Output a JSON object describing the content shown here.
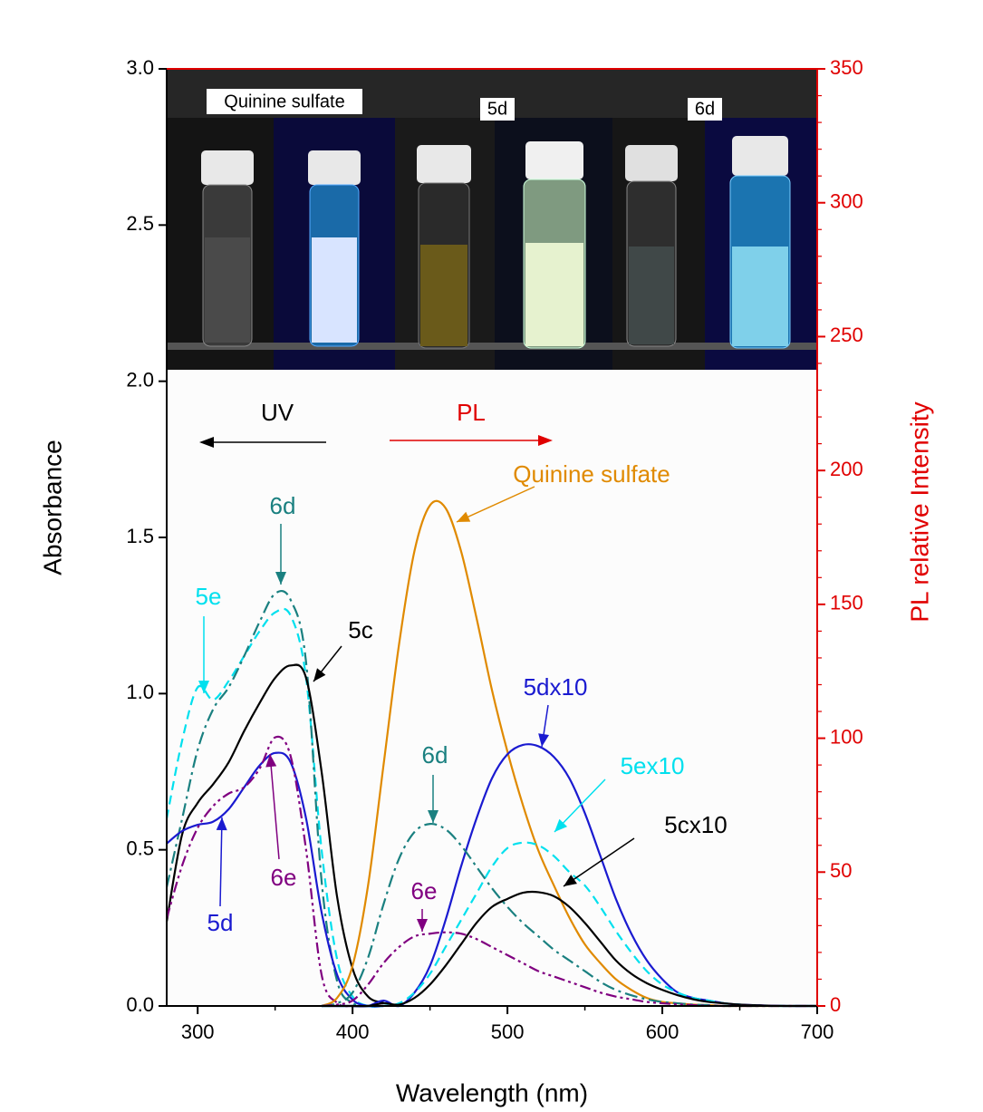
{
  "chart_data": {
    "type": "line",
    "x_label": "Wavelength (nm)",
    "y_label": "Absorbance",
    "y2_label": "PL relative Intensity",
    "photo_labels": [
      "Quinine sulfate",
      "5d",
      "6d"
    ],
    "uv_label": "UV",
    "pl_label": "PL",
    "xlim": [
      280,
      700
    ],
    "xticks": [
      300,
      400,
      500,
      600,
      700
    ],
    "ylim": [
      0,
      3
    ],
    "yticks": [
      {
        "value": 0,
        "label": "0.0"
      },
      0.5,
      {
        "value": 1,
        "label": "1.0"
      },
      1.5,
      {
        "value": 2,
        "label": "2.0"
      },
      2.5,
      {
        "value": 3,
        "label": "3.0"
      }
    ],
    "y2lim": [
      0,
      350
    ],
    "y2ticks": [
      0,
      50,
      100,
      150,
      200,
      250,
      300,
      350
    ],
    "y2_color": "#e00000",
    "series": [
      {
        "name": "5e",
        "color": "#00e0ee",
        "dash": "dashed",
        "x": [
          280,
          290,
          300,
          310,
          320,
          330,
          340,
          350,
          360,
          370,
          380,
          390,
          400,
          410,
          420
        ],
        "values": [
          0.6,
          0.85,
          1.02,
          0.98,
          1.04,
          1.12,
          1.2,
          1.26,
          1.25,
          1.05,
          0.5,
          0.15,
          0.03,
          0,
          0
        ]
      },
      {
        "name": "6d",
        "color": "#1a8080",
        "dash": "dashdot",
        "x": [
          280,
          290,
          300,
          310,
          320,
          330,
          340,
          350,
          360,
          370,
          380,
          390,
          400,
          410,
          420
        ],
        "values": [
          0.38,
          0.6,
          0.82,
          0.95,
          1.02,
          1.12,
          1.23,
          1.32,
          1.3,
          1.1,
          0.4,
          0.08,
          0.01,
          0,
          0
        ]
      },
      {
        "name": "5c",
        "color": "#000000",
        "dash": "solid",
        "x": [
          280,
          290,
          300,
          310,
          320,
          330,
          340,
          350,
          360,
          370,
          380,
          390,
          400,
          410,
          420
        ],
        "values": [
          0.27,
          0.55,
          0.65,
          0.71,
          0.78,
          0.88,
          0.97,
          1.05,
          1.09,
          1.05,
          0.75,
          0.35,
          0.12,
          0.03,
          0.01
        ]
      },
      {
        "name": "5d",
        "color": "#1a1ad0",
        "dash": "solid",
        "x": [
          280,
          290,
          300,
          310,
          320,
          330,
          340,
          350,
          360,
          370,
          380,
          390,
          400,
          410,
          420
        ],
        "values": [
          0.52,
          0.56,
          0.58,
          0.59,
          0.63,
          0.7,
          0.77,
          0.81,
          0.78,
          0.6,
          0.3,
          0.1,
          0.02,
          0,
          0
        ]
      },
      {
        "name": "6e",
        "color": "#800080",
        "dash": "dashdotdot",
        "x": [
          280,
          290,
          300,
          310,
          320,
          330,
          340,
          350,
          360,
          370,
          380,
          390,
          400,
          410,
          420
        ],
        "values": [
          0.28,
          0.45,
          0.57,
          0.64,
          0.68,
          0.7,
          0.76,
          0.86,
          0.8,
          0.5,
          0.1,
          0.01,
          0,
          0,
          0
        ]
      },
      {
        "name": "Quinine sulfate",
        "color": "#e08a00",
        "dash": "solid",
        "axis": "y2",
        "x": [
          380,
          390,
          400,
          410,
          420,
          430,
          440,
          450,
          460,
          470,
          480,
          490,
          500,
          510,
          520,
          530,
          540,
          550,
          560,
          570,
          580,
          590,
          600,
          610,
          620,
          630,
          640,
          650,
          660,
          670,
          680,
          690,
          700
        ],
        "values": [
          0,
          3,
          15,
          45,
          90,
          135,
          170,
          187,
          186,
          170,
          145,
          118,
          95,
          75,
          58,
          45,
          33,
          23,
          16,
          10,
          6,
          3,
          1.5,
          1,
          0.5,
          0.3,
          0,
          0,
          0,
          0,
          0,
          0,
          0
        ]
      },
      {
        "name": "5dx10",
        "color": "#1a1ad0",
        "dash": "solid",
        "axis": "y2",
        "x": [
          380,
          390,
          400,
          410,
          420,
          430,
          440,
          450,
          460,
          470,
          480,
          490,
          500,
          510,
          520,
          530,
          540,
          550,
          560,
          570,
          580,
          590,
          600,
          610,
          620,
          630,
          640,
          650,
          660,
          670,
          680,
          690,
          700
        ],
        "values": [
          0,
          0,
          0,
          0,
          2,
          0,
          5,
          15,
          32,
          52,
          70,
          85,
          94,
          97.5,
          97,
          93,
          85,
          72,
          56,
          40,
          27,
          17,
          10,
          5,
          3,
          2,
          1,
          0.5,
          0.3,
          0.1,
          0,
          0,
          0
        ]
      },
      {
        "name": "5ex10",
        "color": "#00e0ee",
        "dash": "dashed",
        "axis": "y2",
        "x": [
          380,
          390,
          400,
          410,
          420,
          430,
          440,
          450,
          460,
          470,
          480,
          490,
          500,
          510,
          520,
          530,
          540,
          550,
          560,
          570,
          580,
          590,
          600,
          610,
          620,
          630,
          640,
          650,
          660,
          670,
          680,
          690,
          700
        ],
        "values": [
          0,
          0,
          0,
          0,
          0,
          1,
          5,
          12,
          22,
          32,
          42,
          52,
          59,
          61,
          60,
          56,
          50,
          45,
          37,
          28,
          20,
          13,
          8,
          5,
          3,
          2,
          1,
          0.5,
          0.2,
          0,
          0,
          0,
          0
        ]
      },
      {
        "name": "5cx10",
        "color": "#000000",
        "dash": "solid",
        "axis": "y2",
        "x": [
          380,
          390,
          400,
          410,
          420,
          430,
          440,
          450,
          460,
          470,
          480,
          490,
          500,
          510,
          520,
          530,
          540,
          550,
          560,
          570,
          580,
          590,
          600,
          610,
          620,
          630,
          640,
          650,
          660,
          670,
          680,
          690,
          700
        ],
        "values": [
          0,
          0,
          0,
          0,
          1,
          0.5,
          3,
          8,
          15,
          23,
          31,
          37,
          40,
          42.3,
          42.5,
          41,
          37,
          31,
          24,
          17,
          12,
          8.5,
          6,
          4,
          2.5,
          1.5,
          1,
          0.5,
          0.3,
          0.1,
          0,
          0,
          0
        ]
      },
      {
        "name": "6d",
        "color": "#1a8080",
        "dash": "dashdot",
        "axis": "y2",
        "x": [
          380,
          390,
          400,
          410,
          420,
          430,
          440,
          450,
          460,
          470,
          480,
          490,
          500,
          510,
          520,
          530,
          540,
          550,
          560,
          570,
          580,
          590,
          600,
          610,
          620,
          630,
          640,
          650,
          660,
          670,
          680,
          690,
          700
        ],
        "values": [
          0,
          1,
          5,
          18,
          38,
          55,
          65,
          68,
          66,
          60,
          52,
          44,
          37,
          31,
          26,
          21,
          17,
          13,
          9,
          6,
          4,
          2.5,
          1.5,
          1,
          0.5,
          0.3,
          0,
          0,
          0,
          0,
          0,
          0,
          0
        ]
      },
      {
        "name": "6e",
        "color": "#800080",
        "dash": "dashdotdot",
        "axis": "y2",
        "x": [
          380,
          390,
          400,
          410,
          420,
          430,
          440,
          450,
          460,
          470,
          480,
          490,
          500,
          510,
          520,
          530,
          540,
          550,
          560,
          570,
          580,
          590,
          600,
          610,
          620,
          630,
          640,
          650,
          660,
          670,
          680,
          690,
          700
        ],
        "values": [
          0,
          0.5,
          2,
          8,
          16,
          22,
          26,
          27,
          27.5,
          27,
          25,
          22,
          19,
          16,
          13,
          11,
          9,
          7,
          5,
          3.5,
          2.5,
          1.5,
          1,
          0.6,
          0.3,
          0.1,
          0,
          0,
          0,
          0,
          0,
          0,
          0
        ]
      }
    ]
  }
}
